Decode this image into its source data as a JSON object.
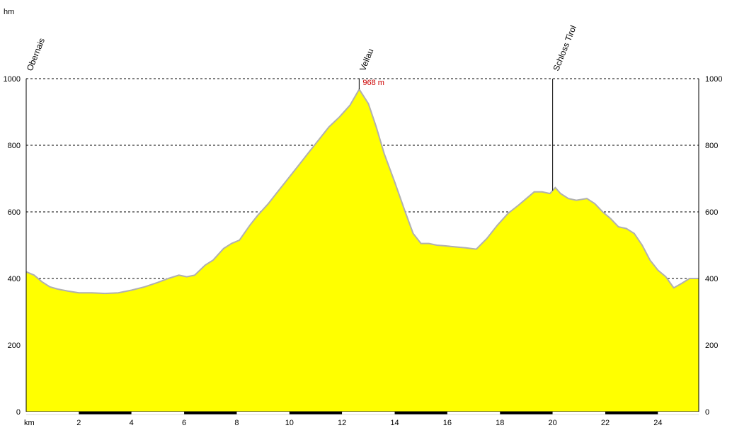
{
  "chart_data": {
    "type": "area",
    "y_unit_label": "hm",
    "x_unit_label": "km",
    "xlim": [
      0,
      25.55
    ],
    "ylim": [
      0,
      1000
    ],
    "grid": true,
    "y_ticks": [
      0,
      200,
      400,
      600,
      800,
      1000
    ],
    "x_ticks": [
      2,
      4,
      6,
      8,
      10,
      12,
      14,
      16,
      18,
      20,
      22,
      24
    ],
    "fill_color": "#ffff00",
    "line_color": "#b0b0b0",
    "x": [
      0,
      0.3,
      0.6,
      0.9,
      1.2,
      1.6,
      2,
      2.5,
      3,
      3.5,
      4,
      4.5,
      5,
      5.4,
      5.8,
      6.1,
      6.4,
      6.8,
      7.1,
      7.5,
      7.8,
      8.1,
      8.5,
      8.8,
      9.2,
      9.5,
      9.9,
      10.3,
      10.7,
      11.1,
      11.5,
      11.9,
      12.3,
      12.65,
      13,
      13.3,
      13.6,
      14,
      14.4,
      14.7,
      15,
      15.3,
      15.6,
      15.9,
      16.3,
      16.7,
      17.1,
      17.5,
      17.9,
      18.3,
      18.7,
      19,
      19.3,
      19.6,
      19.9,
      20.1,
      20.3,
      20.6,
      20.9,
      21.3,
      21.6,
      21.9,
      22.2,
      22.5,
      22.8,
      23.1,
      23.4,
      23.7,
      24,
      24.3,
      24.6,
      24.9,
      25.2,
      25.55
    ],
    "y": [
      420,
      410,
      390,
      375,
      368,
      362,
      357,
      357,
      355,
      357,
      365,
      375,
      388,
      400,
      410,
      405,
      410,
      440,
      455,
      490,
      505,
      515,
      560,
      590,
      625,
      655,
      695,
      735,
      775,
      815,
      855,
      885,
      920,
      968,
      925,
      855,
      775,
      690,
      600,
      535,
      505,
      505,
      500,
      498,
      495,
      492,
      488,
      520,
      560,
      595,
      620,
      640,
      660,
      660,
      655,
      673,
      655,
      640,
      635,
      640,
      625,
      600,
      580,
      555,
      550,
      535,
      500,
      455,
      425,
      405,
      372,
      385,
      400,
      400
    ],
    "waypoints": [
      {
        "label": "Obernais",
        "x": 0
      },
      {
        "label": "Vellau",
        "x": 12.65
      },
      {
        "label": "Schloss Tirol",
        "x": 20
      }
    ],
    "peak_annotation": {
      "text": "968 m",
      "x": 12.65,
      "y": 968,
      "color": "#cc0000"
    }
  }
}
